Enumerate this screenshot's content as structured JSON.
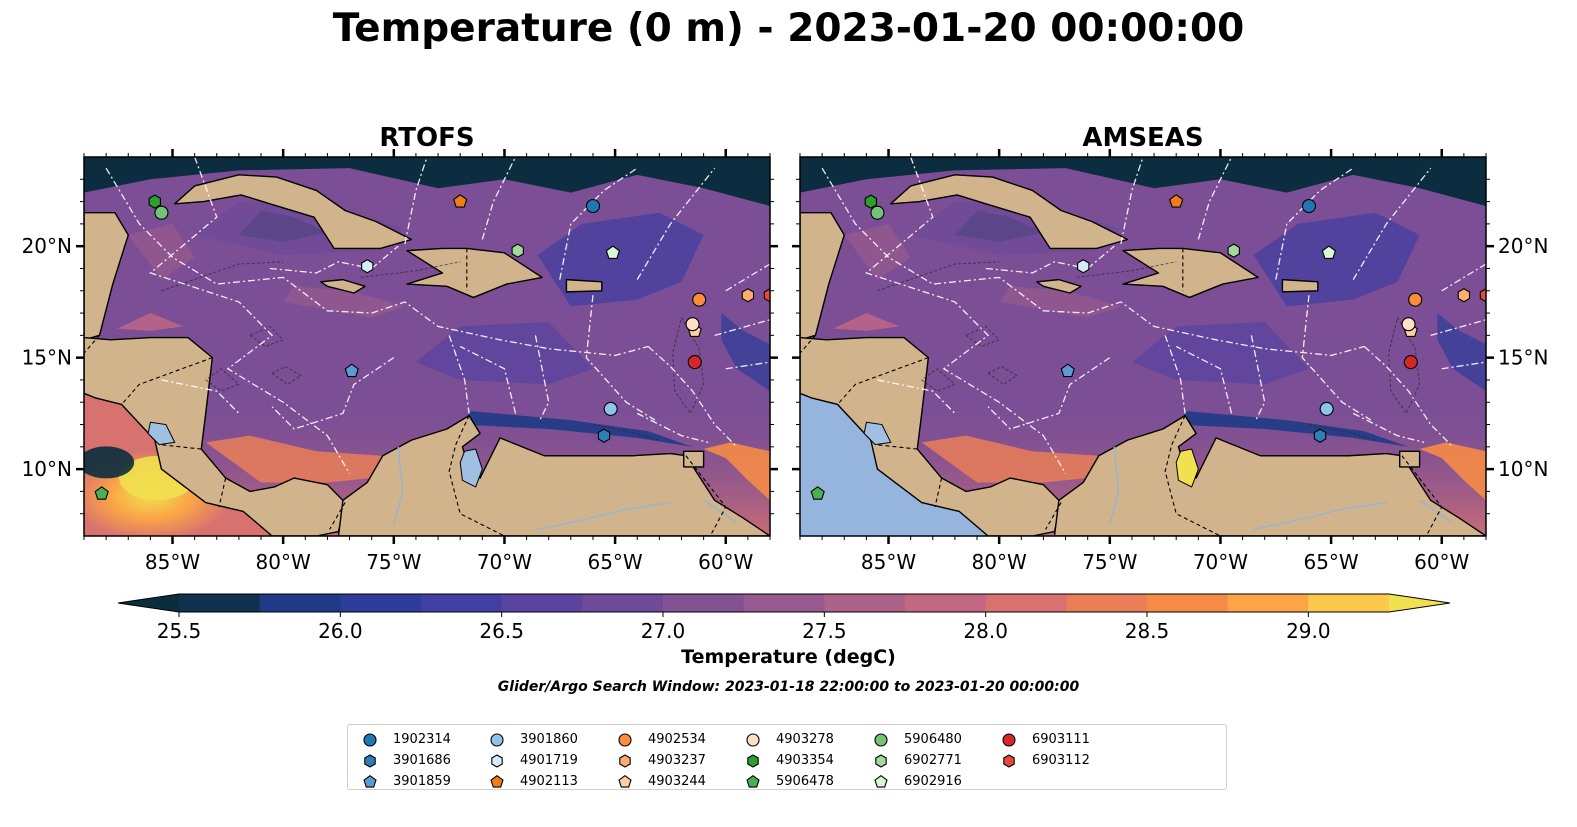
{
  "title": "Temperature (0 m) - 2023-01-20 00:00:00",
  "panels": [
    {
      "title": "RTOFS",
      "cold_tint": "#0c2d3f",
      "pacific_warm": true
    },
    {
      "title": "AMSEAS",
      "cold_tint": "#0c2d3f",
      "pacific_warm": false
    }
  ],
  "colors": {
    "land": "#d2b48c",
    "ocean_mid": "#7b4e95",
    "no_data": "#95b5df",
    "lake": "#9fbfe3",
    "coast": "#000000"
  },
  "lon_ticks": [
    {
      "lon": -85,
      "label": "85°W"
    },
    {
      "lon": -80,
      "label": "80°W"
    },
    {
      "lon": -75,
      "label": "75°W"
    },
    {
      "lon": -70,
      "label": "70°W"
    },
    {
      "lon": -65,
      "label": "65°W"
    },
    {
      "lon": -60,
      "label": "60°W"
    }
  ],
  "lat_ticks": [
    {
      "lat": 20,
      "label": "20°N"
    },
    {
      "lat": 15,
      "label": "15°N"
    },
    {
      "lat": 10,
      "label": "10°N"
    }
  ],
  "colorbar": {
    "label": "Temperature (degC)",
    "min": 25.5,
    "max": 29.25,
    "step": 0.25,
    "colors": [
      "#0b2e3d",
      "#0f3150",
      "#1f3a86",
      "#2e3c9a",
      "#433fa2",
      "#5a44a0",
      "#6e4b98",
      "#835293",
      "#975a8f",
      "#ad6289",
      "#c36883",
      "#d87270",
      "#ea7e58",
      "#f68b47",
      "#fba546",
      "#fcc94e",
      "#f1e04f"
    ],
    "tick_labels": [
      {
        "value": 25.5,
        "label": "25.5"
      },
      {
        "value": 26.0,
        "label": "26.0"
      },
      {
        "value": 26.5,
        "label": "26.5"
      },
      {
        "value": 27.0,
        "label": "27.0"
      },
      {
        "value": 27.5,
        "label": "27.5"
      },
      {
        "value": 28.0,
        "label": "28.0"
      },
      {
        "value": 28.5,
        "label": "28.5"
      },
      {
        "value": 29.0,
        "label": "29.0"
      }
    ]
  },
  "search_window": "Glider/Argo Search Window: 2023-01-18 22:00:00 to 2023-01-20 00:00:00",
  "platforms": [
    {
      "id": "1902314",
      "marker": "circle",
      "color": "#1f77b4",
      "lon": -66.0,
      "lat": 21.8
    },
    {
      "id": "3901686",
      "marker": "hexagon",
      "color": "#2e7ebc",
      "lon": -65.5,
      "lat": 11.5
    },
    {
      "id": "3901859",
      "marker": "pentagon",
      "color": "#5b9bd5",
      "lon": -76.9,
      "lat": 14.4
    },
    {
      "id": "3901860",
      "marker": "circle",
      "color": "#8cc4ea",
      "lon": -65.2,
      "lat": 12.7
    },
    {
      "id": "4901719",
      "marker": "hexagon",
      "color": "#d4ecfa",
      "lon": -76.2,
      "lat": 19.1
    },
    {
      "id": "4902113",
      "marker": "pentagon",
      "color": "#f07c1a",
      "lon": -72.0,
      "lat": 22.0
    },
    {
      "id": "4902534",
      "marker": "circle",
      "color": "#fd8d3c",
      "lon": -61.2,
      "lat": 17.6
    },
    {
      "id": "4903237",
      "marker": "hexagon",
      "color": "#fdae6b",
      "lon": -59.0,
      "lat": 17.8
    },
    {
      "id": "4903244",
      "marker": "pentagon",
      "color": "#fdd0a2",
      "lon": -61.4,
      "lat": 16.2
    },
    {
      "id": "4903278",
      "marker": "circle",
      "color": "#fde0c5",
      "lon": -61.5,
      "lat": 16.5
    },
    {
      "id": "4903354",
      "marker": "hexagon",
      "color": "#2ca02c",
      "lon": -85.8,
      "lat": 22.0
    },
    {
      "id": "5906478",
      "marker": "pentagon",
      "color": "#4caf50",
      "lon": -88.2,
      "lat": 8.9
    },
    {
      "id": "5906480",
      "marker": "circle",
      "color": "#74c476",
      "lon": -85.5,
      "lat": 21.5
    },
    {
      "id": "6902771",
      "marker": "hexagon",
      "color": "#a1d99b",
      "lon": -69.4,
      "lat": 19.8
    },
    {
      "id": "6902916",
      "marker": "pentagon",
      "color": "#d9f6d2",
      "lon": -65.1,
      "lat": 19.7
    },
    {
      "id": "6903111",
      "marker": "circle",
      "color": "#d62728",
      "lon": -61.4,
      "lat": 14.8
    },
    {
      "id": "6903112",
      "marker": "hexagon",
      "color": "#e8473a",
      "lon": -58.0,
      "lat": 17.8
    }
  ]
}
